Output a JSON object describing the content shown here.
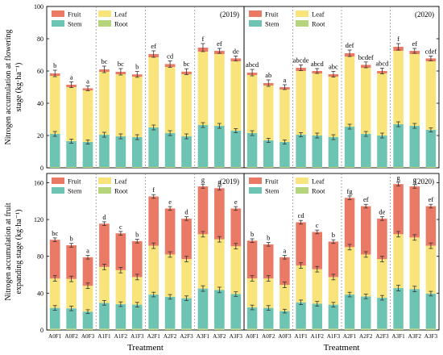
{
  "colors": {
    "Fruit": "#ea7a66",
    "Leaf": "#f8e47a",
    "Stem": "#6ec4b3",
    "Root": "#b6d47c",
    "error": "#333333"
  },
  "chart_data": [
    {
      "type": "bar",
      "stacked": true,
      "ylabel_line1": "Nitrogen accumulation at flowering",
      "ylabel_line2": "stage (kg·ha⁻¹)",
      "ylim": [
        0,
        100
      ],
      "yticks": [
        0,
        20,
        40,
        60,
        80,
        100
      ],
      "panels": [
        {
          "year": "(2019)",
          "legend": [
            "Fruit",
            "Leaf",
            "Stem",
            "Root"
          ],
          "categories": [
            "A0F1",
            "A0F2",
            "A0F3",
            "A1F1",
            "A1F2",
            "A1F3",
            "A2F1",
            "A2F2",
            "A2F3",
            "A3F1",
            "A3F2",
            "A3F3"
          ],
          "series": [
            {
              "name": "Root",
              "values": [
                0.5,
                0.5,
                0.5,
                0.5,
                0.5,
                0.5,
                0.5,
                0.5,
                0.5,
                0.5,
                0.5,
                0.5
              ]
            },
            {
              "name": "Stem",
              "values": [
                20.5,
                16.0,
                15.5,
                20.0,
                19.0,
                18.5,
                24.5,
                21.0,
                19.0,
                26.0,
                25.5,
                22.5
              ]
            },
            {
              "name": "Leaf",
              "values": [
                36.0,
                33.5,
                32.0,
                39.0,
                38.5,
                37.5,
                43.5,
                41.0,
                38.5,
                45.5,
                44.5,
                43.0
              ]
            },
            {
              "name": "Fruit",
              "values": [
                1.5,
                1.5,
                1.3,
                1.5,
                1.5,
                1.4,
                2.0,
                1.8,
                1.6,
                2.5,
                2.0,
                1.8
              ]
            }
          ],
          "total_error": [
            2.0,
            1.8,
            1.5,
            2.0,
            2.0,
            1.8,
            2.0,
            2.0,
            1.8,
            2.5,
            1.5,
            1.5
          ],
          "stem_error": [
            1.5,
            1.3,
            1.3,
            1.5,
            1.5,
            1.5,
            1.5,
            1.5,
            1.5,
            1.5,
            1.5,
            1.3
          ],
          "letters": [
            "b",
            "a",
            "a",
            "bc",
            "bc",
            "b",
            "ef",
            "cd",
            "bc",
            "f",
            "ef",
            "de"
          ]
        },
        {
          "year": "(2020)",
          "legend": [
            "Fruit",
            "Leaf",
            "Stem",
            "Root"
          ],
          "categories": [
            "A0F1",
            "A0F2",
            "A0F3",
            "A1F1",
            "A1F2",
            "A1F3",
            "A2F1",
            "A2F2",
            "A2F3",
            "A3F1",
            "A3F2",
            "A3F3"
          ],
          "series": [
            {
              "name": "Root",
              "values": [
                0.5,
                0.5,
                0.5,
                0.5,
                0.5,
                0.5,
                0.5,
                0.5,
                0.5,
                0.5,
                0.5,
                0.5
              ]
            },
            {
              "name": "Stem",
              "values": [
                21.0,
                16.5,
                15.5,
                20.0,
                19.5,
                18.5,
                25.0,
                20.5,
                19.5,
                26.5,
                25.5,
                23.0
              ]
            },
            {
              "name": "Leaf",
              "values": [
                36.0,
                34.0,
                32.5,
                39.5,
                38.5,
                37.5,
                43.5,
                41.0,
                38.5,
                45.5,
                44.5,
                42.5
              ]
            },
            {
              "name": "Fruit",
              "values": [
                1.5,
                1.5,
                1.5,
                2.0,
                1.5,
                1.5,
                2.0,
                1.8,
                1.5,
                2.5,
                2.0,
                1.8
              ]
            }
          ],
          "total_error": [
            2.0,
            2.0,
            1.5,
            1.8,
            1.5,
            1.8,
            2.0,
            1.8,
            1.8,
            2.0,
            1.5,
            1.5
          ],
          "stem_error": [
            1.5,
            1.3,
            1.3,
            1.3,
            1.5,
            1.5,
            1.5,
            1.5,
            1.5,
            1.5,
            1.5,
            1.3
          ],
          "letters": [
            "abcd",
            "ab",
            "a",
            "abcde",
            "abcd",
            "abc",
            "def",
            "bcdef",
            "abcd",
            "f",
            "ef",
            "cdef"
          ]
        }
      ]
    },
    {
      "type": "bar",
      "stacked": true,
      "ylabel_line1": "Nitrogen accumulation at fruit",
      "ylabel_line2": "expanding stage (kg·ha⁻¹)",
      "ylim": [
        0,
        170
      ],
      "yticks": [
        0,
        40,
        80,
        120,
        160
      ],
      "xlabel": "Treatment",
      "panels": [
        {
          "year": "(2019)",
          "legend": [
            "Fruit",
            "Leaf",
            "Stem",
            "Root"
          ],
          "categories": [
            "A0F1",
            "A0F2",
            "A0F3",
            "A1F1",
            "A1F2",
            "A1F3",
            "A2F1",
            "A2F2",
            "A2F3",
            "A3F1",
            "A3F2",
            "A3F3"
          ],
          "series": [
            {
              "name": "Root",
              "values": [
                1.5,
                1.5,
                1.5,
                1.5,
                1.5,
                1.5,
                1.5,
                1.5,
                1.5,
                1.5,
                1.5,
                1.5
              ]
            },
            {
              "name": "Stem",
              "values": [
                22.5,
                22.0,
                18.5,
                28.0,
                26.5,
                26.0,
                37.0,
                34.5,
                33.0,
                43.5,
                42.0,
                37.5
              ]
            },
            {
              "name": "Leaf",
              "values": [
                32.0,
                32.0,
                28.0,
                39.0,
                37.0,
                30.0,
                53.0,
                46.0,
                42.5,
                59.0,
                55.0,
                52.0
              ]
            },
            {
              "name": "Fruit",
              "values": [
                42.0,
                36.5,
                31.0,
                47.0,
                40.0,
                39.0,
                53.5,
                50.0,
                44.0,
                52.0,
                55.5,
                41.0
              ]
            }
          ],
          "total_error": [
            2.0,
            2.0,
            2.0,
            2.0,
            2.0,
            2.0,
            2.0,
            2.0,
            2.0,
            2.0,
            2.0,
            2.0
          ],
          "mid_error": [
            3.0,
            3.0,
            3.0,
            3.0,
            3.0,
            3.0,
            3.0,
            3.0,
            3.0,
            3.0,
            3.0,
            3.0
          ],
          "stem_error": [
            2.5,
            2.5,
            2.0,
            2.5,
            2.5,
            2.5,
            2.5,
            2.5,
            2.5,
            3.0,
            3.0,
            2.5
          ],
          "letters": [
            "bc",
            "b",
            "a",
            "d",
            "c",
            "b",
            "f",
            "e",
            "d",
            "g",
            "g",
            "e"
          ]
        },
        {
          "year": "(2020)",
          "legend": [
            "Fruit",
            "Leaf",
            "Stem",
            "Root"
          ],
          "categories": [
            "A0F1",
            "A0F2",
            "A0F3",
            "A1F1",
            "A1F2",
            "A1F3",
            "A2F1",
            "A2F2",
            "A2F3",
            "A3F1",
            "A3F2",
            "A3F3"
          ],
          "series": [
            {
              "name": "Root",
              "values": [
                1.5,
                1.5,
                1.5,
                1.5,
                1.5,
                1.5,
                1.5,
                1.5,
                1.5,
                1.5,
                1.5,
                1.5
              ]
            },
            {
              "name": "Stem",
              "values": [
                23.0,
                22.5,
                19.0,
                28.5,
                27.0,
                26.0,
                37.0,
                35.0,
                33.5,
                44.0,
                43.0,
                38.0
              ]
            },
            {
              "name": "Leaf",
              "values": [
                31.5,
                32.0,
                28.5,
                40.0,
                37.5,
                30.0,
                51.5,
                45.5,
                42.0,
                58.5,
                56.0,
                52.0
              ]
            },
            {
              "name": "Fruit",
              "values": [
                41.0,
                37.0,
                30.0,
                47.0,
                40.5,
                38.5,
                53.5,
                52.5,
                44.0,
                54.5,
                55.5,
                43.0
              ]
            }
          ],
          "total_error": [
            2.0,
            2.0,
            2.0,
            2.0,
            2.0,
            2.0,
            2.0,
            2.0,
            2.0,
            2.0,
            2.0,
            2.0
          ],
          "mid_error": [
            3.0,
            3.0,
            3.0,
            3.0,
            3.0,
            3.0,
            3.0,
            3.0,
            3.0,
            3.0,
            3.0,
            3.0
          ],
          "stem_error": [
            2.5,
            2.5,
            2.0,
            2.5,
            2.5,
            2.5,
            2.5,
            2.5,
            2.5,
            3.0,
            3.0,
            2.5
          ],
          "letters": [
            "b",
            "b",
            "a",
            "cd",
            "c",
            "b",
            "fg",
            "ef",
            "de",
            "g",
            "g",
            "ef"
          ]
        }
      ]
    }
  ]
}
